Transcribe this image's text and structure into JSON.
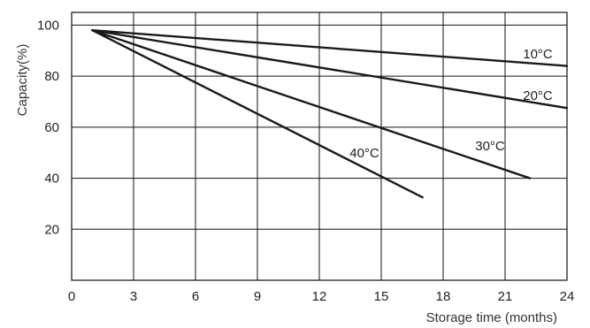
{
  "chart_data": {
    "type": "line",
    "title": "",
    "xlabel": "Storage time (months)",
    "ylabel": "Capacity(%)",
    "xlim": [
      0,
      24
    ],
    "ylim": [
      0,
      105
    ],
    "x_ticks": [
      0,
      3,
      6,
      9,
      12,
      15,
      18,
      21,
      24
    ],
    "y_ticks": [
      20,
      40,
      60,
      80,
      100
    ],
    "grid": true,
    "legend": "none",
    "line_color": "#1a1a1a",
    "series": [
      {
        "name": "10°C",
        "x": [
          1,
          24
        ],
        "y": [
          98,
          84
        ]
      },
      {
        "name": "20°C",
        "x": [
          1,
          24
        ],
        "y": [
          98,
          67.5
        ]
      },
      {
        "name": "30°C",
        "x": [
          1,
          22.2
        ],
        "y": [
          98,
          40
        ]
      },
      {
        "name": "40°C",
        "x": [
          1,
          17
        ],
        "y": [
          98,
          32.5
        ]
      }
    ]
  }
}
